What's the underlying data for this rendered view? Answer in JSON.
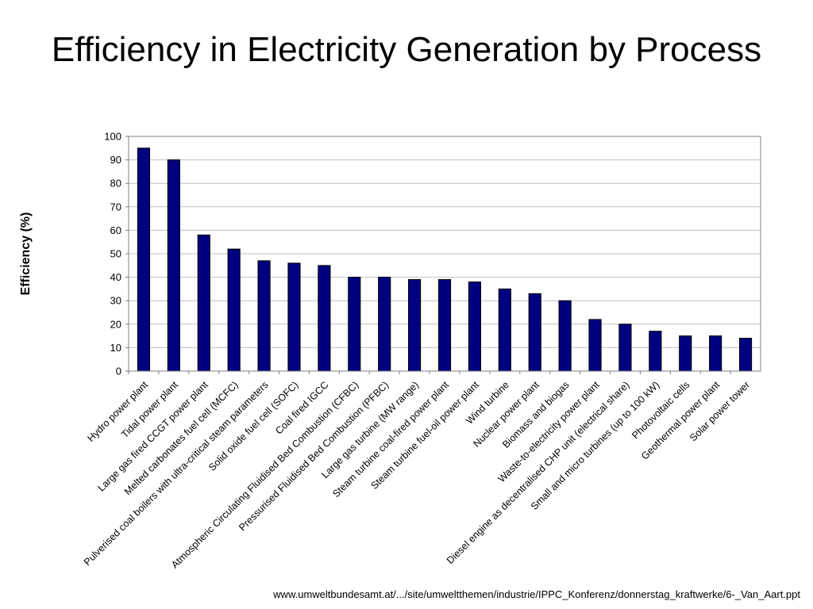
{
  "title": "Efficiency in Electricity Generation by Process",
  "source": "www.umweltbundesamt.at/.../site/umweltthemen/industrie/IPPC_Konferenz/donnerstag_kraftwerke/6-_Van_Aart.ppt",
  "chart_data": {
    "type": "bar",
    "ylabel": "Efficiency (%)",
    "xlabel": "",
    "ylim": [
      0,
      100
    ],
    "yticks": [
      0,
      10,
      20,
      30,
      40,
      50,
      60,
      70,
      80,
      90,
      100
    ],
    "grid": true,
    "bar_color": "#000080",
    "categories": [
      "Hydro power plant",
      "Tidal power plant",
      "Large gas fired CCGT power plant",
      "Melted carbonates fuel cell (MCFC)",
      "Pulverised coal boilers with ultra-critical steam parameters",
      "Solid oxide fuel cell (SOFC)",
      "Coal fired IGCC",
      "Atmospheric Circulating Fluidised Bed Combustion (CFBC)",
      "Pressurised Fluidised Bed Combustion (PFBC)",
      "Large gas turbine (MW range)",
      "Steam turbine coal-fired power plant",
      "Steam turbine fuel-oil power plant",
      "Wind turbine",
      "Nuclear power plant",
      "Biomass and biogas",
      "Waste-to-electricity power plant",
      "Diesel engine as decentralised CHP unit (electrical share)",
      "Small and micro turbines (up to 100 kW)",
      "Photovoltaic cells",
      "Geothermal power plant",
      "Solar power tower"
    ],
    "values": [
      95,
      90,
      58,
      52,
      47,
      46,
      45,
      40,
      40,
      39,
      39,
      38,
      35,
      33,
      30,
      22,
      20,
      17,
      15,
      15,
      14
    ]
  }
}
